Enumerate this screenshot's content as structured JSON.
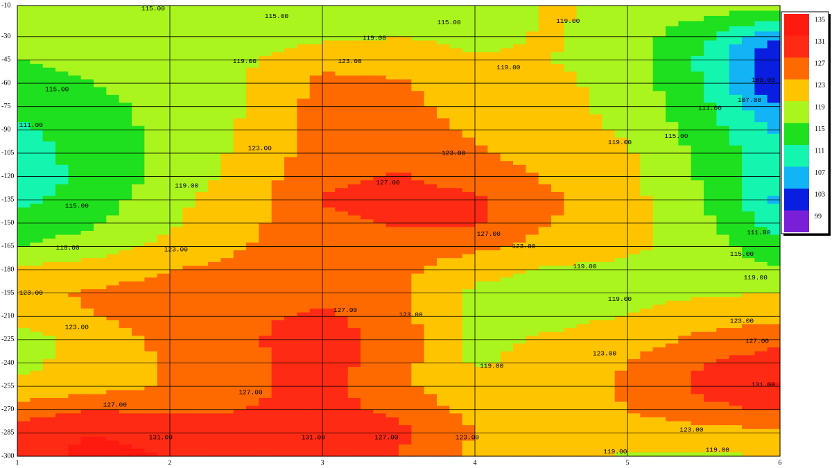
{
  "chart_data": {
    "type": "contour",
    "xlim": [
      1,
      6
    ],
    "ylim": [
      -300,
      -10
    ],
    "xticks": [
      1,
      2,
      3,
      4,
      5,
      6
    ],
    "yticks": [
      -10,
      -30,
      -45,
      -60,
      -75,
      -90,
      -105,
      -120,
      -135,
      -150,
      -165,
      -180,
      -195,
      -210,
      -225,
      -240,
      -255,
      -270,
      -285,
      -300
    ],
    "grid": true,
    "legend": "right",
    "levels": [
      99,
      103,
      107,
      111,
      115,
      119,
      123,
      127,
      131,
      135
    ],
    "colors": [
      "#7a1fd8",
      "#0a1ee0",
      "#12b4f5",
      "#14f5b0",
      "#1ee01e",
      "#aaf51e",
      "#ffc400",
      "#ff6a00",
      "#ff2a14",
      "#ff1a10"
    ],
    "x": [
      1,
      1.5,
      2,
      2.5,
      3,
      3.5,
      4,
      4.5,
      5,
      5.5,
      6
    ],
    "y": [
      -10,
      -30,
      -45,
      -60,
      -75,
      -90,
      -105,
      -120,
      -135,
      -150,
      -165,
      -180,
      -195,
      -210,
      -225,
      -240,
      -255,
      -270,
      -285,
      -300
    ],
    "z": [
      [
        116,
        116,
        115.5,
        115,
        115.5,
        116,
        116,
        119.5,
        118,
        117,
        117
      ],
      [
        115.5,
        116,
        116.5,
        117,
        118,
        119,
        118,
        119.5,
        117,
        112,
        103
      ],
      [
        115,
        116,
        117,
        118.5,
        122,
        121,
        119.5,
        119,
        117,
        110,
        98
      ],
      [
        114,
        115,
        116.5,
        119,
        124,
        123.5,
        121,
        120,
        117.5,
        111,
        98
      ],
      [
        112,
        114,
        116,
        119,
        124.5,
        124,
        121.5,
        120,
        118,
        112,
        103
      ],
      [
        110,
        113.5,
        116,
        119.5,
        125,
        124.5,
        122.5,
        120.5,
        118.5,
        113,
        106
      ],
      [
        109,
        113,
        116,
        120,
        125,
        125.5,
        123.5,
        121.5,
        119.5,
        114,
        108
      ],
      [
        109,
        112,
        116.5,
        120.5,
        126,
        127.5,
        125,
        122.5,
        120,
        114.5,
        108
      ],
      [
        110,
        113,
        118,
        121.5,
        127.5,
        128,
        128,
        123.5,
        120.5,
        115,
        106
      ],
      [
        112,
        114.5,
        118.5,
        122,
        126,
        127.5,
        127.5,
        123,
        121,
        116,
        109
      ],
      [
        115,
        117,
        120,
        123,
        124.5,
        125,
        124,
        121.5,
        120,
        117,
        112
      ],
      [
        119.5,
        121,
        123,
        124,
        124.5,
        124,
        120.5,
        118.5,
        118,
        117,
        115.5
      ],
      [
        122,
        123.5,
        124.5,
        125,
        125,
        124,
        118,
        117.5,
        118,
        118.5,
        119
      ],
      [
        121,
        123,
        124.5,
        126,
        128,
        124.5,
        118,
        118,
        119,
        121,
        122
      ],
      [
        117,
        121,
        124,
        126.5,
        129,
        125,
        118,
        119.5,
        121,
        124,
        126
      ],
      [
        118,
        120.5,
        123.5,
        126,
        129,
        124.5,
        118.5,
        120.5,
        123,
        127,
        129
      ],
      [
        119.5,
        121.5,
        123.5,
        126,
        128.5,
        124,
        120,
        121.5,
        123.5,
        128,
        131.5
      ],
      [
        125,
        127,
        126,
        127,
        128.5,
        126,
        121.5,
        121.5,
        123,
        126,
        127.5
      ],
      [
        129,
        131,
        130,
        129.5,
        130,
        128,
        123,
        121,
        121,
        121.5,
        122
      ],
      [
        129.5,
        132,
        131,
        131,
        131,
        127,
        122,
        120,
        118.5,
        118.5,
        119
      ]
    ],
    "contour_labels": [
      {
        "text": "115.00",
        "x": 1.89,
        "y": -12
      },
      {
        "text": "115.00",
        "x": 2.7,
        "y": -17
      },
      {
        "text": "115.00",
        "x": 3.83,
        "y": -21
      },
      {
        "text": "119.00",
        "x": 4.61,
        "y": -20
      },
      {
        "text": "119.00",
        "x": 3.34,
        "y": -31
      },
      {
        "text": "123.00",
        "x": 3.18,
        "y": -46
      },
      {
        "text": "119.00",
        "x": 2.49,
        "y": -46
      },
      {
        "text": "119.00",
        "x": 4.22,
        "y": -50
      },
      {
        "text": "115.00",
        "x": 1.26,
        "y": -64
      },
      {
        "text": "103.00",
        "x": 5.89,
        "y": -58
      },
      {
        "text": "107.00",
        "x": 5.8,
        "y": -71
      },
      {
        "text": "111.00",
        "x": 5.54,
        "y": -76
      },
      {
        "text": "111.00",
        "x": 1.09,
        "y": -87
      },
      {
        "text": "123.00",
        "x": 2.59,
        "y": -102
      },
      {
        "text": "123.00",
        "x": 3.86,
        "y": -105
      },
      {
        "text": "119.00",
        "x": 4.95,
        "y": -98
      },
      {
        "text": "115.00",
        "x": 5.32,
        "y": -94
      },
      {
        "text": "119.00",
        "x": 2.11,
        "y": -126
      },
      {
        "text": "127.00",
        "x": 3.43,
        "y": -124
      },
      {
        "text": "115.00",
        "x": 1.39,
        "y": -139
      },
      {
        "text": "127.00",
        "x": 4.09,
        "y": -157
      },
      {
        "text": "111.00",
        "x": 5.86,
        "y": -156
      },
      {
        "text": "119.00",
        "x": 1.33,
        "y": -166
      },
      {
        "text": "123.00",
        "x": 2.04,
        "y": -167
      },
      {
        "text": "123.00",
        "x": 4.32,
        "y": -165
      },
      {
        "text": "119.00",
        "x": 4.72,
        "y": -178
      },
      {
        "text": "115.00",
        "x": 5.75,
        "y": -170
      },
      {
        "text": "119.00",
        "x": 5.84,
        "y": -185
      },
      {
        "text": "123.00",
        "x": 1.09,
        "y": -195
      },
      {
        "text": "119.00",
        "x": 4.95,
        "y": -199
      },
      {
        "text": "127.00",
        "x": 3.15,
        "y": -206
      },
      {
        "text": "123.00",
        "x": 3.58,
        "y": -209
      },
      {
        "text": "123.00",
        "x": 1.39,
        "y": -217
      },
      {
        "text": "123.00",
        "x": 5.75,
        "y": -213
      },
      {
        "text": "127.00",
        "x": 5.85,
        "y": -226
      },
      {
        "text": "123.00",
        "x": 4.85,
        "y": -234
      },
      {
        "text": "119.00",
        "x": 4.11,
        "y": -242
      },
      {
        "text": "131.00",
        "x": 5.89,
        "y": -254
      },
      {
        "text": "127.00",
        "x": 2.53,
        "y": -259
      },
      {
        "text": "127.00",
        "x": 1.64,
        "y": -267
      },
      {
        "text": "127.00",
        "x": 3.42,
        "y": -288
      },
      {
        "text": "123.00",
        "x": 3.95,
        "y": -288
      },
      {
        "text": "123.00",
        "x": 5.42,
        "y": -283
      },
      {
        "text": "131.00",
        "x": 1.94,
        "y": -288
      },
      {
        "text": "131.00",
        "x": 2.94,
        "y": -288
      },
      {
        "text": "119.00",
        "x": 4.92,
        "y": -297
      },
      {
        "text": "119.00",
        "x": 5.59,
        "y": -296
      }
    ]
  }
}
